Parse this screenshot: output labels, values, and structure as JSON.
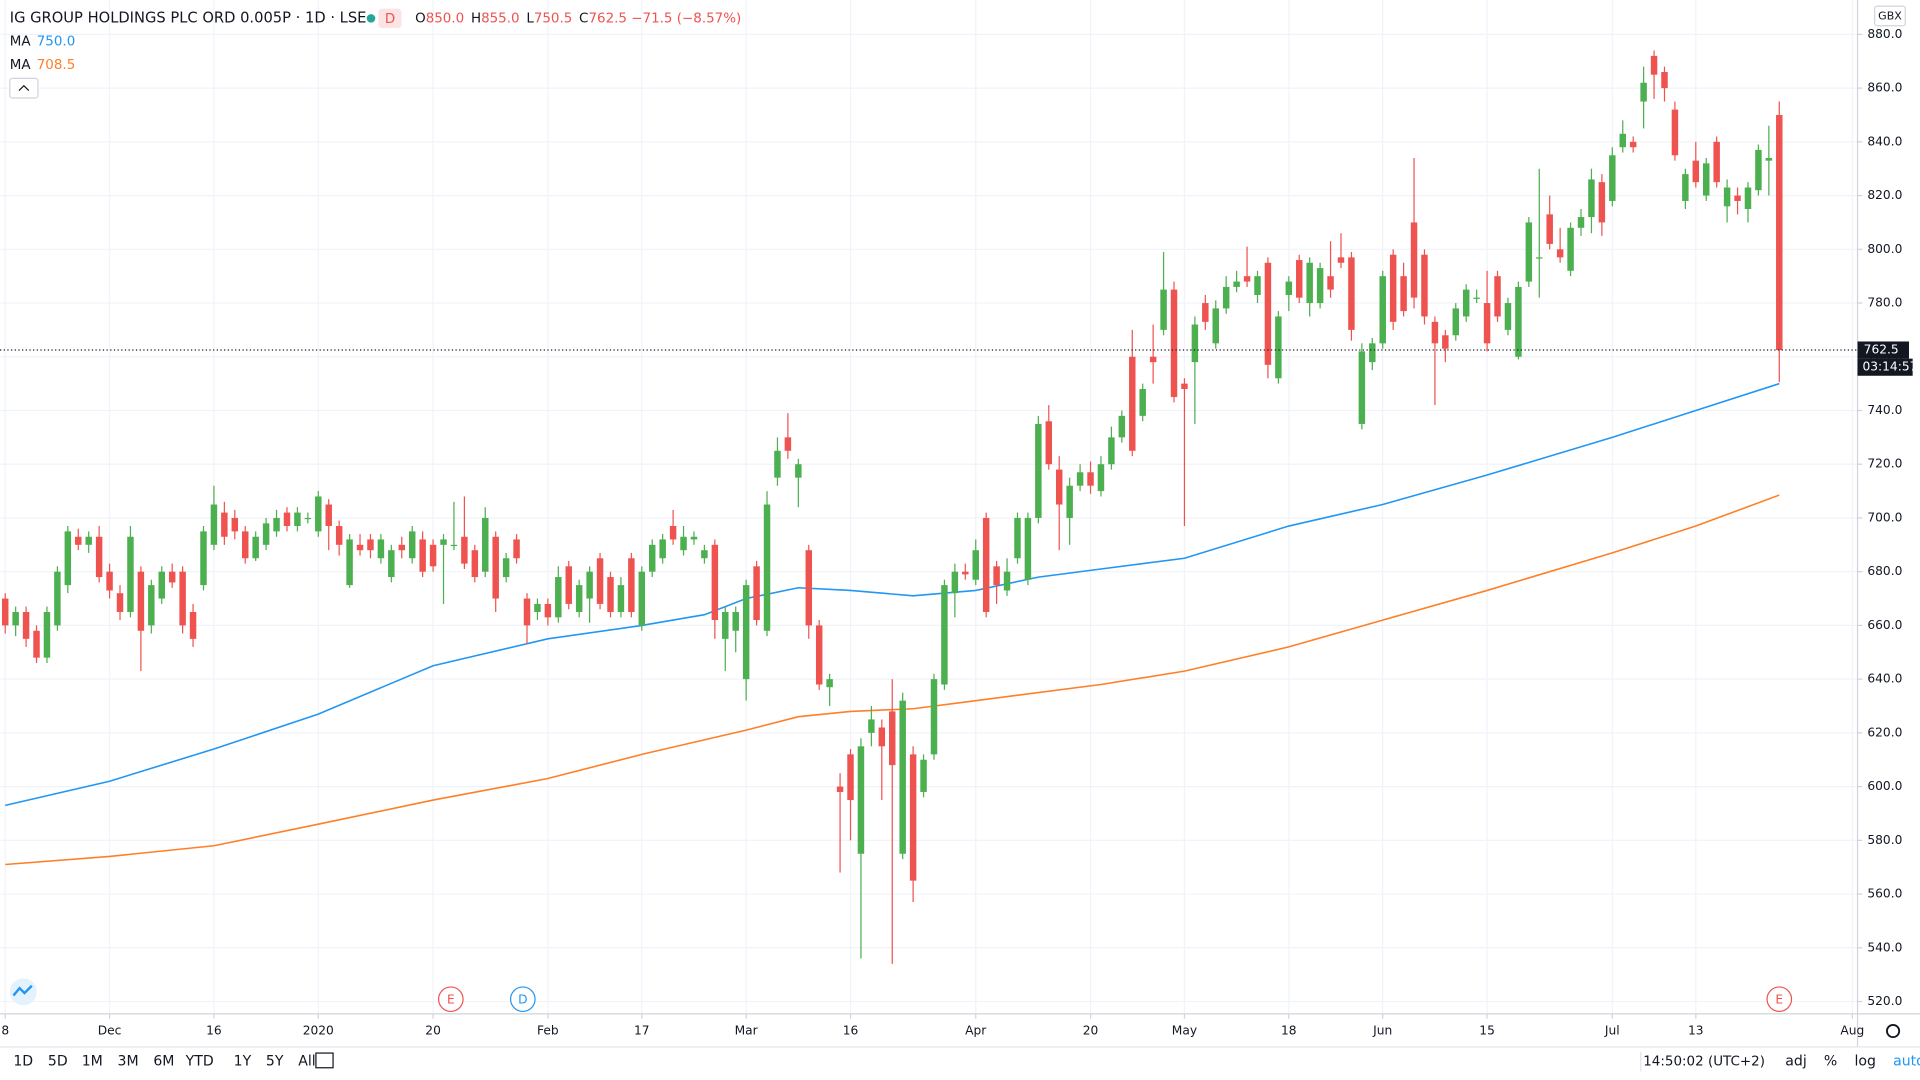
{
  "chart_data": {
    "type": "candlestick",
    "title": "IG GROUP HOLDINGS PLC ORD 0.005P · 1D · LSE",
    "badge": "D",
    "ohlc_legend": [
      {
        "k": "O",
        "v": "850.0"
      },
      {
        "k": "H",
        "v": "855.0"
      },
      {
        "k": "L",
        "v": "750.5"
      },
      {
        "k": "C",
        "v": "762.5"
      },
      {
        "k": "",
        "v": "−71.5 (−8.57%)"
      }
    ],
    "currency": "GBX",
    "countdown": "03:14:57",
    "up_color": "#4caf50",
    "down_color": "#ef5350",
    "ylim": [
      515.4,
      892.8
    ],
    "yticks": [
      {
        "value": 520,
        "label": "520.0"
      },
      {
        "value": 540,
        "label": "540.0"
      },
      {
        "value": 560,
        "label": "560.0"
      },
      {
        "value": 580,
        "label": "580.0"
      },
      {
        "value": 600,
        "label": "600.0"
      },
      {
        "value": 620,
        "label": "620.0"
      },
      {
        "value": 640,
        "label": "640.0"
      },
      {
        "value": 660,
        "label": "660.0"
      },
      {
        "value": 680,
        "label": "680.0"
      },
      {
        "value": 700,
        "label": "700.0"
      },
      {
        "value": 720,
        "label": "720.0"
      },
      {
        "value": 740,
        "label": "740.0"
      },
      {
        "value": 760,
        "label": "760.0"
      },
      {
        "value": 780,
        "label": "780.0"
      },
      {
        "value": 800,
        "label": "800.0"
      },
      {
        "value": 820,
        "label": "820.0"
      },
      {
        "value": 840,
        "label": "840.0"
      },
      {
        "value": 860,
        "label": "860.0"
      },
      {
        "value": 880,
        "label": "880.0"
      }
    ],
    "xlim": [
      -0.5,
      177.5
    ],
    "xticks": [
      {
        "value": 0,
        "label": "8"
      },
      {
        "value": 10,
        "label": "Dec"
      },
      {
        "value": 20,
        "label": "16"
      },
      {
        "value": 30,
        "label": "2020"
      },
      {
        "value": 41,
        "label": "20"
      },
      {
        "value": 52,
        "label": "Feb"
      },
      {
        "value": 61,
        "label": "17"
      },
      {
        "value": 71,
        "label": "Mar"
      },
      {
        "value": 81,
        "label": "16"
      },
      {
        "value": 93,
        "label": "Apr"
      },
      {
        "value": 104,
        "label": "20"
      },
      {
        "value": 113,
        "label": "May"
      },
      {
        "value": 123,
        "label": "18"
      },
      {
        "value": 132,
        "label": "Jun"
      },
      {
        "value": 142,
        "label": "15"
      },
      {
        "value": 154,
        "label": "Jul"
      },
      {
        "value": 162,
        "label": "13"
      },
      {
        "value": 177,
        "label": "Aug"
      }
    ],
    "grid": true,
    "ohlc": [
      [
        670,
        672,
        657,
        660
      ],
      [
        660,
        667,
        656,
        665
      ],
      [
        665,
        667,
        652,
        655
      ],
      [
        658,
        660,
        646,
        648
      ],
      [
        648,
        667,
        646,
        665
      ],
      [
        660,
        682,
        658,
        680
      ],
      [
        675,
        697,
        672,
        695
      ],
      [
        693,
        696,
        688,
        690
      ],
      [
        690,
        695,
        687,
        693
      ],
      [
        693,
        697,
        676,
        678
      ],
      [
        680,
        683,
        670,
        673
      ],
      [
        672,
        675,
        662,
        665
      ],
      [
        665,
        697,
        663,
        693
      ],
      [
        680,
        682,
        643,
        658
      ],
      [
        660,
        677,
        657,
        675
      ],
      [
        670,
        682,
        668,
        680
      ],
      [
        680,
        683,
        674,
        676
      ],
      [
        680,
        682,
        657,
        660
      ],
      [
        665,
        668,
        652,
        655
      ],
      [
        675,
        697,
        673,
        695
      ],
      [
        690,
        712,
        688,
        705
      ],
      [
        702,
        706,
        690,
        693
      ],
      [
        700,
        703,
        692,
        695
      ],
      [
        695,
        697,
        683,
        685
      ],
      [
        685,
        695,
        684,
        693
      ],
      [
        690,
        700,
        688,
        698
      ],
      [
        695,
        703,
        693,
        700
      ],
      [
        702,
        704,
        695,
        697
      ],
      [
        697,
        704,
        695,
        702
      ],
      [
        700,
        702,
        698,
        700
      ],
      [
        695,
        710,
        693,
        708
      ],
      [
        705,
        707,
        688,
        697
      ],
      [
        697,
        699,
        686,
        690
      ],
      [
        675,
        694,
        674,
        692
      ],
      [
        690,
        694,
        686,
        688
      ],
      [
        692,
        694,
        685,
        688
      ],
      [
        685,
        694,
        683,
        692
      ],
      [
        678,
        690,
        676,
        688
      ],
      [
        690,
        693,
        685,
        688
      ],
      [
        685,
        697,
        683,
        695
      ],
      [
        692,
        695,
        678,
        680
      ],
      [
        690,
        692,
        680,
        682
      ],
      [
        690,
        694,
        668,
        692
      ],
      [
        690,
        706,
        688,
        690
      ],
      [
        693,
        708,
        681,
        683
      ],
      [
        688,
        690,
        676,
        678
      ],
      [
        680,
        704,
        678,
        700
      ],
      [
        693,
        695,
        665,
        670
      ],
      [
        678,
        687,
        676,
        685
      ],
      [
        692,
        694,
        683,
        685
      ],
      [
        670,
        672,
        653,
        660
      ],
      [
        665,
        670,
        662,
        668
      ],
      [
        668,
        670,
        660,
        663
      ],
      [
        663,
        682,
        661,
        678
      ],
      [
        682,
        684,
        666,
        668
      ],
      [
        665,
        677,
        663,
        675
      ],
      [
        670,
        682,
        661,
        680
      ],
      [
        685,
        687,
        666,
        668
      ],
      [
        678,
        680,
        663,
        665
      ],
      [
        665,
        678,
        663,
        675
      ],
      [
        685,
        687,
        663,
        665
      ],
      [
        660,
        682,
        658,
        680
      ],
      [
        680,
        692,
        678,
        690
      ],
      [
        685,
        694,
        683,
        692
      ],
      [
        697,
        703,
        690,
        692
      ],
      [
        688,
        697,
        686,
        693
      ],
      [
        692,
        695,
        690,
        693
      ],
      [
        685,
        690,
        683,
        688
      ],
      [
        690,
        692,
        655,
        662
      ],
      [
        655,
        667,
        643,
        665
      ],
      [
        658,
        667,
        650,
        665
      ],
      [
        640,
        677,
        632,
        675
      ],
      [
        682,
        684,
        660,
        662
      ],
      [
        658,
        710,
        656,
        705
      ],
      [
        715,
        730,
        712,
        725
      ],
      [
        730,
        739,
        722,
        725
      ],
      [
        715,
        722,
        704,
        720
      ],
      [
        688,
        690,
        655,
        660
      ],
      [
        660,
        662,
        636,
        638
      ],
      [
        637,
        642,
        630,
        640
      ],
      [
        600,
        605,
        568,
        598
      ],
      [
        612,
        614,
        580,
        595
      ],
      [
        575,
        618,
        536,
        615
      ],
      [
        620,
        630,
        615,
        625
      ],
      [
        622,
        625,
        595,
        615
      ],
      [
        628,
        640,
        534,
        608
      ],
      [
        575,
        635,
        573,
        632
      ],
      [
        612,
        615,
        557,
        565
      ],
      [
        598,
        612,
        596,
        610
      ],
      [
        612,
        642,
        610,
        640
      ],
      [
        638,
        677,
        636,
        675
      ],
      [
        672,
        683,
        663,
        680
      ],
      [
        680,
        683,
        677,
        679
      ],
      [
        677,
        692,
        675,
        688
      ],
      [
        700,
        702,
        663,
        665
      ],
      [
        682,
        684,
        668,
        675
      ],
      [
        673,
        685,
        671,
        680
      ],
      [
        685,
        702,
        683,
        700
      ],
      [
        677,
        702,
        675,
        700
      ],
      [
        700,
        738,
        698,
        735
      ],
      [
        736,
        742,
        718,
        720
      ],
      [
        718,
        723,
        688,
        705
      ],
      [
        700,
        715,
        690,
        712
      ],
      [
        712,
        720,
        710,
        717
      ],
      [
        717,
        721,
        709,
        712
      ],
      [
        710,
        723,
        708,
        720
      ],
      [
        720,
        734,
        718,
        730
      ],
      [
        730,
        740,
        728,
        738
      ],
      [
        760,
        770,
        723,
        725
      ],
      [
        738,
        750,
        736,
        748
      ],
      [
        760,
        772,
        750,
        758
      ],
      [
        770,
        799,
        768,
        785
      ],
      [
        785,
        788,
        743,
        745
      ],
      [
        750,
        752,
        697,
        748
      ],
      [
        758,
        775,
        735,
        772
      ],
      [
        780,
        783,
        770,
        773
      ],
      [
        765,
        781,
        763,
        778
      ],
      [
        778,
        790,
        776,
        786
      ],
      [
        786,
        792,
        784,
        788
      ],
      [
        790,
        801,
        786,
        788
      ],
      [
        783,
        792,
        780,
        790
      ],
      [
        795,
        797,
        752,
        757
      ],
      [
        752,
        777,
        750,
        775
      ],
      [
        783,
        790,
        777,
        788
      ],
      [
        796,
        798,
        780,
        782
      ],
      [
        780,
        797,
        775,
        795
      ],
      [
        780,
        795,
        778,
        793
      ],
      [
        790,
        803,
        782,
        785
      ],
      [
        797,
        806,
        793,
        795
      ],
      [
        797,
        799,
        766,
        770
      ],
      [
        735,
        765,
        733,
        762
      ],
      [
        758,
        767,
        755,
        765
      ],
      [
        765,
        792,
        763,
        790
      ],
      [
        798,
        800,
        770,
        773
      ],
      [
        790,
        795,
        775,
        777
      ],
      [
        810,
        834,
        778,
        782
      ],
      [
        798,
        800,
        772,
        775
      ],
      [
        773,
        775,
        742,
        765
      ],
      [
        768,
        770,
        758,
        763
      ],
      [
        768,
        780,
        766,
        778
      ],
      [
        775,
        787,
        773,
        785
      ],
      [
        782,
        785,
        780,
        782
      ],
      [
        780,
        792,
        762,
        765
      ],
      [
        790,
        792,
        773,
        775
      ],
      [
        770,
        782,
        768,
        780
      ],
      [
        760,
        788,
        759,
        786
      ],
      [
        788,
        812,
        786,
        810
      ],
      [
        797,
        830,
        782,
        797
      ],
      [
        813,
        820,
        800,
        802
      ],
      [
        800,
        808,
        795,
        797
      ],
      [
        792,
        810,
        790,
        808
      ],
      [
        808,
        815,
        805,
        812
      ],
      [
        812,
        830,
        806,
        826
      ],
      [
        825,
        828,
        805,
        810
      ],
      [
        818,
        838,
        816,
        835
      ],
      [
        838,
        848,
        836,
        843
      ],
      [
        840,
        842,
        836,
        838
      ],
      [
        855,
        868,
        845,
        862
      ],
      [
        872,
        874,
        856,
        865
      ],
      [
        866,
        868,
        855,
        860
      ],
      [
        852,
        855,
        833,
        835
      ],
      [
        818,
        830,
        815,
        828
      ],
      [
        833,
        840,
        823,
        825
      ],
      [
        820,
        834,
        818,
        832
      ],
      [
        840,
        842,
        823,
        825
      ],
      [
        816,
        826,
        810,
        823
      ],
      [
        820,
        823,
        813,
        818
      ],
      [
        815,
        825,
        810,
        823
      ],
      [
        822,
        839,
        820,
        837
      ],
      [
        833,
        846,
        820,
        834
      ],
      [
        850,
        855,
        750.5,
        762.5
      ]
    ],
    "ma_series": [
      {
        "name": "MA",
        "value_label": "750.0",
        "color": "#2196f3",
        "x": [
          0,
          10,
          20,
          30,
          41,
          52,
          61,
          67,
          71,
          76,
          81,
          87,
          93,
          99,
          105,
          113,
          123,
          132,
          142,
          154,
          162,
          170
        ],
        "values": [
          593,
          602,
          614,
          627,
          645,
          655,
          660,
          664,
          670,
          674,
          673,
          671,
          673,
          678,
          681,
          685,
          697,
          705,
          716,
          730,
          740,
          750
        ]
      },
      {
        "name": "MA",
        "value_label": "708.5",
        "color": "#ff7f27",
        "x": [
          0,
          10,
          20,
          30,
          41,
          52,
          61,
          71,
          76,
          81,
          87,
          93,
          105,
          113,
          123,
          132,
          142,
          154,
          162,
          170
        ],
        "values": [
          571,
          574,
          578,
          586,
          595,
          603,
          612,
          621,
          626,
          628,
          629,
          632,
          638,
          643,
          652,
          662,
          673,
          687,
          697,
          708.5
        ]
      }
    ],
    "events": [
      {
        "label": "E",
        "at": 42.7,
        "color": "#ef5350"
      },
      {
        "label": "D",
        "at": 49.6,
        "color": "#2196f3"
      },
      {
        "label": "E",
        "at": 170,
        "color": "#ef5350"
      }
    ]
  },
  "toolbar": {
    "ranges": [
      "1D",
      "5D",
      "1M",
      "3M",
      "6M",
      "YTD",
      "1Y",
      "5Y",
      "All"
    ],
    "clock": "14:50:02 (UTC+2)",
    "options": [
      "adj",
      "%",
      "log",
      "auto"
    ]
  }
}
